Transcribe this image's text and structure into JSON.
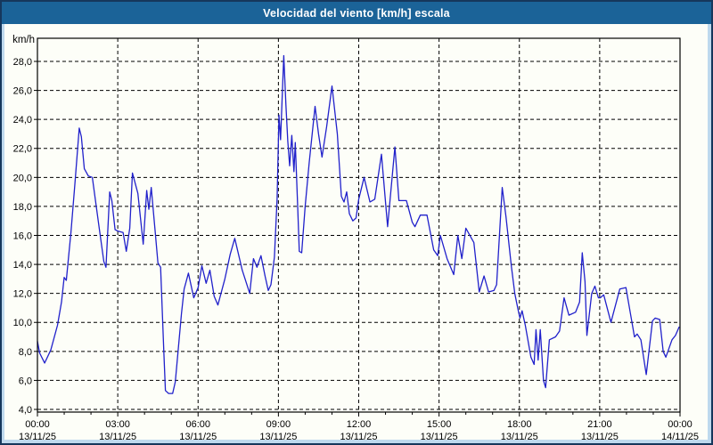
{
  "window": {
    "title": "Velocidad del viento [km/h] escala"
  },
  "colors": {
    "outer_border": "#16375c",
    "frame_background": "#bed9ee",
    "title_bar_background": "#1b6398",
    "title_text": "#ffffff",
    "plot_background": "#fdfef8",
    "grid_color": "#000000",
    "axis_color": "#000000",
    "label_color": "#000000",
    "line_color": "#2121cb"
  },
  "chart_data": {
    "type": "line",
    "title": "Velocidad del viento [km/h] escala",
    "ylabel": "km/h",
    "xlabel": "",
    "grid": "dashed, horizontal every 2 km/h and vertical every 3 h",
    "legend_position": "none",
    "ylim": [
      4,
      29.6
    ],
    "xlim_hours": [
      0,
      24
    ],
    "yticks": {
      "values": [
        4,
        6,
        8,
        10,
        12,
        14,
        16,
        18,
        20,
        22,
        24,
        26,
        28
      ],
      "labels": [
        "4,0",
        "6,0",
        "8,0",
        "10,0",
        "12,0",
        "14,0",
        "16,0",
        "18,0",
        "20,0",
        "22,0",
        "24,0",
        "26,0",
        "28,0"
      ],
      "unit_label": "km/h"
    },
    "xticks": [
      {
        "hour": 0,
        "time": "00:00",
        "date": "13/11/25"
      },
      {
        "hour": 3,
        "time": "03:00",
        "date": "13/11/25"
      },
      {
        "hour": 6,
        "time": "06:00",
        "date": "13/11/25"
      },
      {
        "hour": 9,
        "time": "09:00",
        "date": "13/11/25"
      },
      {
        "hour": 12,
        "time": "12:00",
        "date": "13/11/25"
      },
      {
        "hour": 15,
        "time": "15:00",
        "date": "13/11/25"
      },
      {
        "hour": 18,
        "time": "18:00",
        "date": "13/11/25"
      },
      {
        "hour": 21,
        "time": "21:00",
        "date": "13/11/25"
      },
      {
        "hour": 24,
        "time": "00:00",
        "date": "14/11/25"
      }
    ],
    "minor_xtick_every_hours": 1,
    "series": [
      {
        "name": "Velocidad del viento",
        "color": "#2121cb",
        "points": [
          [
            0,
            8.7
          ],
          [
            0.08,
            7.9
          ],
          [
            0.27,
            7.2
          ],
          [
            0.5,
            8.1
          ],
          [
            0.75,
            9.8
          ],
          [
            0.9,
            11.4
          ],
          [
            1.0,
            13.1
          ],
          [
            1.08,
            12.9
          ],
          [
            1.25,
            16.2
          ],
          [
            1.4,
            19.6
          ],
          [
            1.56,
            23.4
          ],
          [
            1.64,
            22.8
          ],
          [
            1.75,
            20.6
          ],
          [
            1.9,
            20.1
          ],
          [
            2.05,
            20.0
          ],
          [
            2.3,
            16.6
          ],
          [
            2.48,
            14.2
          ],
          [
            2.56,
            13.8
          ],
          [
            2.7,
            19.0
          ],
          [
            2.78,
            18.4
          ],
          [
            2.9,
            16.4
          ],
          [
            3.0,
            16.3
          ],
          [
            3.2,
            16.2
          ],
          [
            3.32,
            14.9
          ],
          [
            3.45,
            16.5
          ],
          [
            3.55,
            20.3
          ],
          [
            3.62,
            19.8
          ],
          [
            3.75,
            18.9
          ],
          [
            3.95,
            15.4
          ],
          [
            4.08,
            19.1
          ],
          [
            4.16,
            17.8
          ],
          [
            4.25,
            19.3
          ],
          [
            4.4,
            16.2
          ],
          [
            4.5,
            14.1
          ],
          [
            4.6,
            13.8
          ],
          [
            4.72,
            8.0
          ],
          [
            4.78,
            5.3
          ],
          [
            4.9,
            5.1
          ],
          [
            5.05,
            5.1
          ],
          [
            5.15,
            5.9
          ],
          [
            5.38,
            10.6
          ],
          [
            5.48,
            12.3
          ],
          [
            5.64,
            13.4
          ],
          [
            5.84,
            11.7
          ],
          [
            6.0,
            12.4
          ],
          [
            6.14,
            13.9
          ],
          [
            6.3,
            12.7
          ],
          [
            6.44,
            13.6
          ],
          [
            6.6,
            11.8
          ],
          [
            6.74,
            11.2
          ],
          [
            7.0,
            13.0
          ],
          [
            7.2,
            14.7
          ],
          [
            7.37,
            15.8
          ],
          [
            7.65,
            13.6
          ],
          [
            7.93,
            12.0
          ],
          [
            8.07,
            14.4
          ],
          [
            8.2,
            13.8
          ],
          [
            8.35,
            14.6
          ],
          [
            8.5,
            13.2
          ],
          [
            8.62,
            12.2
          ],
          [
            8.72,
            12.6
          ],
          [
            8.85,
            14.5
          ],
          [
            8.95,
            18.5
          ],
          [
            9.02,
            24.3
          ],
          [
            9.08,
            22.6
          ],
          [
            9.2,
            28.4
          ],
          [
            9.28,
            25.0
          ],
          [
            9.35,
            22.5
          ],
          [
            9.42,
            20.8
          ],
          [
            9.5,
            22.9
          ],
          [
            9.58,
            20.4
          ],
          [
            9.63,
            22.4
          ],
          [
            9.72,
            18.0
          ],
          [
            9.78,
            14.9
          ],
          [
            9.87,
            14.8
          ],
          [
            10.0,
            18.0
          ],
          [
            10.15,
            21.0
          ],
          [
            10.37,
            24.9
          ],
          [
            10.5,
            23.0
          ],
          [
            10.63,
            21.4
          ],
          [
            10.8,
            23.5
          ],
          [
            11.0,
            26.3
          ],
          [
            11.2,
            23.0
          ],
          [
            11.35,
            18.7
          ],
          [
            11.45,
            18.3
          ],
          [
            11.55,
            19.0
          ],
          [
            11.65,
            17.5
          ],
          [
            11.78,
            17.0
          ],
          [
            11.9,
            17.2
          ],
          [
            12.0,
            18.5
          ],
          [
            12.2,
            20.0
          ],
          [
            12.42,
            18.3
          ],
          [
            12.6,
            18.5
          ],
          [
            12.85,
            21.6
          ],
          [
            13.08,
            16.6
          ],
          [
            13.35,
            22.1
          ],
          [
            13.5,
            18.4
          ],
          [
            13.78,
            18.4
          ],
          [
            14.0,
            16.9
          ],
          [
            14.1,
            16.6
          ],
          [
            14.3,
            17.4
          ],
          [
            14.55,
            17.4
          ],
          [
            14.8,
            15.0
          ],
          [
            14.95,
            14.6
          ],
          [
            15.05,
            16.0
          ],
          [
            15.3,
            14.4
          ],
          [
            15.55,
            13.3
          ],
          [
            15.7,
            16.0
          ],
          [
            15.85,
            14.4
          ],
          [
            16.0,
            16.5
          ],
          [
            16.3,
            15.5
          ],
          [
            16.5,
            12.1
          ],
          [
            16.68,
            13.2
          ],
          [
            16.85,
            12.1
          ],
          [
            17.05,
            12.2
          ],
          [
            17.15,
            12.6
          ],
          [
            17.36,
            19.3
          ],
          [
            17.5,
            17.3
          ],
          [
            17.7,
            13.9
          ],
          [
            17.83,
            12.0
          ],
          [
            17.95,
            10.9
          ],
          [
            18.02,
            10.3
          ],
          [
            18.1,
            10.8
          ],
          [
            18.22,
            9.8
          ],
          [
            18.43,
            7.6
          ],
          [
            18.55,
            7.1
          ],
          [
            18.62,
            9.5
          ],
          [
            18.7,
            7.4
          ],
          [
            18.78,
            9.5
          ],
          [
            18.9,
            6.0
          ],
          [
            18.98,
            5.5
          ],
          [
            19.12,
            8.8
          ],
          [
            19.35,
            9.0
          ],
          [
            19.5,
            9.4
          ],
          [
            19.67,
            11.7
          ],
          [
            19.85,
            10.5
          ],
          [
            20.1,
            10.7
          ],
          [
            20.25,
            11.4
          ],
          [
            20.35,
            14.8
          ],
          [
            20.45,
            12.8
          ],
          [
            20.52,
            9.1
          ],
          [
            20.7,
            12.0
          ],
          [
            20.82,
            12.5
          ],
          [
            20.95,
            11.7
          ],
          [
            21.02,
            11.7
          ],
          [
            21.15,
            11.9
          ],
          [
            21.42,
            10.0
          ],
          [
            21.75,
            12.3
          ],
          [
            21.98,
            12.4
          ],
          [
            22.14,
            10.7
          ],
          [
            22.3,
            9.0
          ],
          [
            22.4,
            9.2
          ],
          [
            22.54,
            8.8
          ],
          [
            22.74,
            6.4
          ],
          [
            22.97,
            10.1
          ],
          [
            23.07,
            10.3
          ],
          [
            23.24,
            10.2
          ],
          [
            23.37,
            8.0
          ],
          [
            23.47,
            7.6
          ],
          [
            23.7,
            8.8
          ],
          [
            23.83,
            9.1
          ],
          [
            23.97,
            9.7
          ]
        ]
      }
    ]
  }
}
